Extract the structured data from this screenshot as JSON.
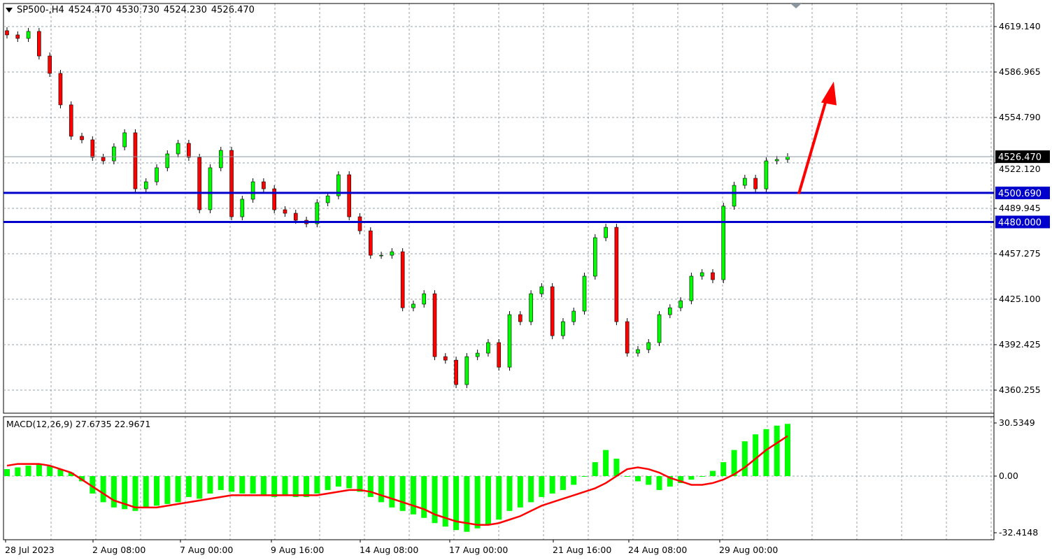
{
  "header": {
    "symbol": "SP500-,H4",
    "open": "4524.470",
    "high": "4530.730",
    "low": "4524.230",
    "close": "4526.470"
  },
  "macd_header": {
    "label": "MACD(12,26,9)",
    "macd": "27.6735",
    "signal": "22.9671"
  },
  "colors": {
    "bull": "#00ff00",
    "bear": "#ff0000",
    "level_line": "#0000cc",
    "arrow": "#ff0000",
    "grid": "#9aa3ad",
    "signal": "#ff0000",
    "hist": "#00ff00"
  },
  "chart_data": [
    {
      "type": "candlestick",
      "ylim": [
        4350,
        4630
      ],
      "yticks": [
        "4619.140",
        "4586.965",
        "4554.790",
        "4522.120",
        "4489.945",
        "4457.275",
        "4425.100",
        "4392.425",
        "4360.255"
      ],
      "xticks": [
        "28 Jul 2023",
        "2 Aug 08:00",
        "7 Aug 00:00",
        "9 Aug 16:00",
        "14 Aug 08:00",
        "17 Aug 00:00",
        "21 Aug 16:00",
        "24 Aug 08:00",
        "29 Aug 00:00"
      ],
      "close": [
        4613.2,
        4610.7,
        4615.7,
        4598.2,
        4585.8,
        4563.4,
        4541.0,
        4538.5,
        4526.0,
        4523.5,
        4533.5,
        4543.5,
        4503.6,
        4508.6,
        4518.6,
        4528.5,
        4536.0,
        4526.0,
        4488.7,
        4518.6,
        4531.0,
        4483.7,
        4496.2,
        4508.6,
        4503.6,
        4488.7,
        4486.2,
        4481.2,
        4478.7,
        4493.7,
        4498.6,
        4513.6,
        4483.7,
        4473.7,
        4456.3,
        4456.3,
        4458.8,
        4418.9,
        4421.5,
        4428.9,
        4384.1,
        4381.6,
        4364.2,
        4384.1,
        4386.6,
        4394.1,
        4376.6,
        4414.0,
        4409.0,
        4428.9,
        4433.9,
        4399.0,
        4409.0,
        4416.5,
        4441.4,
        4468.8,
        4476.2,
        4409.0,
        4386.6,
        4389.1,
        4394.1,
        4414.0,
        4418.9,
        4423.9,
        4441.4,
        4443.9,
        4438.9,
        4491.2,
        4506.1,
        4511.1,
        4503.6,
        4523.5,
        4524.5,
        4526.47
      ],
      "levels": [
        {
          "value": 4500.69,
          "label": "4500.690"
        },
        {
          "value": 4480.0,
          "label": "4480.000"
        }
      ],
      "current_price": {
        "value": 4526.47,
        "label": "4526.470"
      },
      "arrow": {
        "from_price": 4500,
        "to_price": 4580,
        "direction": "up"
      }
    },
    {
      "type": "macd",
      "ylim": [
        -34,
        32
      ],
      "yticks": [
        "30.5349",
        "0.00",
        "-32.4148"
      ],
      "histogram": [
        4,
        5,
        6,
        7,
        6,
        4,
        2,
        -3,
        -10,
        -15,
        -18,
        -19,
        -20,
        -18,
        -17,
        -16,
        -15,
        -12,
        -13,
        -10,
        -8,
        -9,
        -10,
        -10,
        -11,
        -12,
        -11,
        -12,
        -12,
        -10,
        -8,
        -6,
        -7,
        -9,
        -12,
        -15,
        -18,
        -20,
        -22,
        -24,
        -27,
        -29,
        -31,
        -32,
        -30,
        -28,
        -25,
        -20,
        -18,
        -15,
        -12,
        -10,
        -8,
        -5,
        0,
        8,
        15,
        10,
        0,
        -3,
        -5,
        -8,
        -6,
        -4,
        -2,
        0,
        3,
        8,
        15,
        20,
        24,
        27,
        29,
        30
      ],
      "signal": [
        6,
        7,
        7,
        7,
        6,
        4,
        2,
        -2,
        -6,
        -10,
        -14,
        -16,
        -18,
        -18,
        -18,
        -17,
        -16,
        -15,
        -14,
        -13,
        -12,
        -11,
        -11,
        -11,
        -11,
        -11,
        -11,
        -11,
        -11,
        -11,
        -10,
        -9,
        -8,
        -8,
        -9,
        -11,
        -13,
        -15,
        -17,
        -19,
        -22,
        -24,
        -26,
        -27,
        -28,
        -28,
        -27,
        -25,
        -23,
        -20,
        -17,
        -15,
        -13,
        -11,
        -9,
        -7,
        -4,
        0,
        4,
        5,
        4,
        2,
        -1,
        -3,
        -5,
        -5,
        -4,
        -2,
        1,
        5,
        10,
        15,
        19,
        23
      ]
    }
  ]
}
